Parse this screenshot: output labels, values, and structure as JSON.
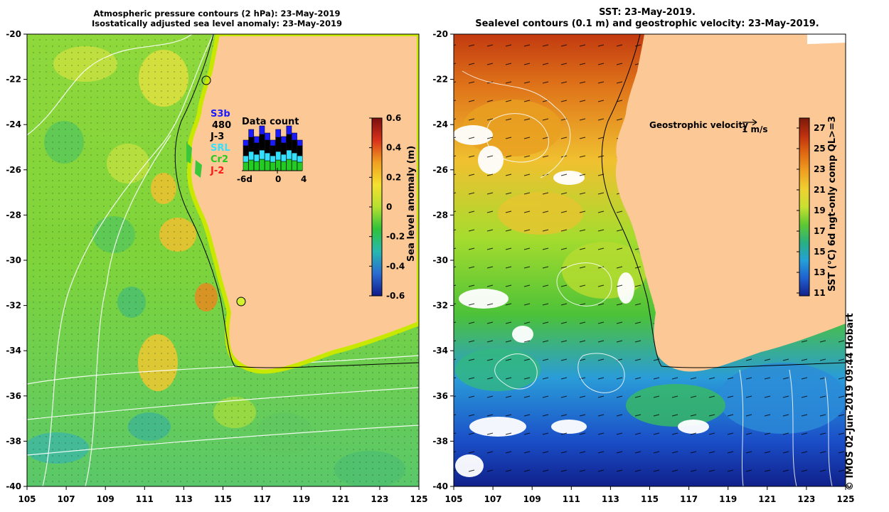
{
  "left_panel": {
    "title_line1": "Atmospheric pressure contours (2 hPa): 23-May-2019",
    "title_line2": "Isostatically adjusted sea level anomaly: 23-May-2019",
    "colorbar": {
      "label": "Sea level anomaly (m)",
      "ticks": [
        "0.6",
        "0.4",
        "0.2",
        "0",
        "-0.2",
        "-0.4",
        "-0.6"
      ],
      "colors": [
        "#7a0f0f",
        "#d8321a",
        "#f0a020",
        "#f5e030",
        "#b5e030",
        "#2fc23a",
        "#28b8b0",
        "#2a6cd0",
        "#101a8a"
      ]
    },
    "legend": {
      "satellites": [
        {
          "name": "S3b",
          "color": "#1a1aff"
        },
        {
          "name": "480",
          "color": "#000000"
        },
        {
          "name": "J-3",
          "color": "#000000"
        },
        {
          "name": "SRL",
          "color": "#33e0ff"
        },
        {
          "name": "Cr2",
          "color": "#22cc22"
        },
        {
          "name": "J-2",
          "color": "#ff1a1a"
        }
      ],
      "data_count_title": "Data count",
      "axis_labels": [
        "-6d",
        "0",
        "4"
      ]
    }
  },
  "right_panel": {
    "title_line1": "SST: 23-May-2019.",
    "title_line2": "Sealevel contours (0.1 m) and geostrophic velocity: 23-May-2019.",
    "velocity_label": "Geostrophic velocity",
    "velocity_scale": "1 m/s",
    "colorbar": {
      "label": "SST (°C) 6d ngt-only comp QL>=3",
      "ticks": [
        "27",
        "25",
        "23",
        "21",
        "19",
        "17",
        "15",
        "13",
        "11"
      ],
      "colors": [
        "#7a1a0a",
        "#c0300e",
        "#e06a12",
        "#f0a020",
        "#f0d030",
        "#c8e030",
        "#5ec832",
        "#28b080",
        "#24a0d8",
        "#2060d0",
        "#14208a"
      ]
    }
  },
  "map_axes": {
    "lat_labels": [
      "-20",
      "-22",
      "-24",
      "-26",
      "-28",
      "-30",
      "-32",
      "-34",
      "-36",
      "-38",
      "-40"
    ],
    "lon_labels": [
      "105",
      "107",
      "109",
      "111",
      "113",
      "115",
      "117",
      "119",
      "121",
      "123",
      "125"
    ]
  },
  "land_color": "#fcc896",
  "credit": "© IMOS 02-Jun-2019 09:44 Hobart"
}
